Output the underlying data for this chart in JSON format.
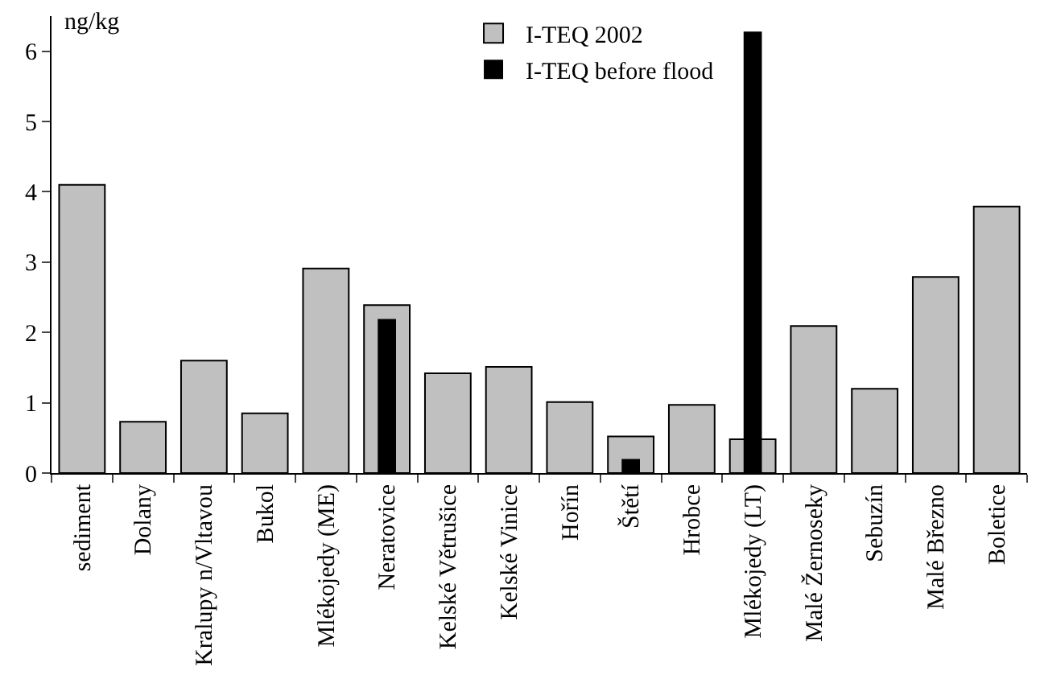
{
  "chart_data": {
    "type": "bar",
    "ylabel": "ng/kg",
    "categories": [
      "sediment",
      "Dolany",
      "Kralupy n/Vltavou",
      "Bukol",
      "Mlékojedy (ME)",
      "Neratovice",
      "Kelské Větrušice",
      "Kelské Vinice",
      "Hořín",
      "Štětí",
      "Hrobce",
      "Mlékojedy (LT)",
      "Malé Žernoseky",
      "Sebuzín",
      "Malé Březno",
      "Boletice"
    ],
    "series": [
      {
        "name": "I-TEQ 2002",
        "color": "#c0c0c0",
        "values": [
          4.1,
          0.73,
          1.6,
          0.85,
          2.91,
          2.39,
          1.42,
          1.51,
          1.01,
          0.52,
          0.97,
          0.48,
          2.09,
          1.2,
          2.79,
          3.79
        ]
      },
      {
        "name": "I-TEQ before flood",
        "color": "#000000",
        "values": [
          null,
          null,
          null,
          null,
          null,
          2.19,
          null,
          null,
          null,
          0.2,
          null,
          6.28,
          null,
          null,
          null,
          null
        ]
      }
    ],
    "ylim": [
      0,
      6.5
    ],
    "yticks": [
      0,
      1,
      2,
      3,
      4,
      5,
      6
    ],
    "grid": false,
    "legend": "top"
  }
}
